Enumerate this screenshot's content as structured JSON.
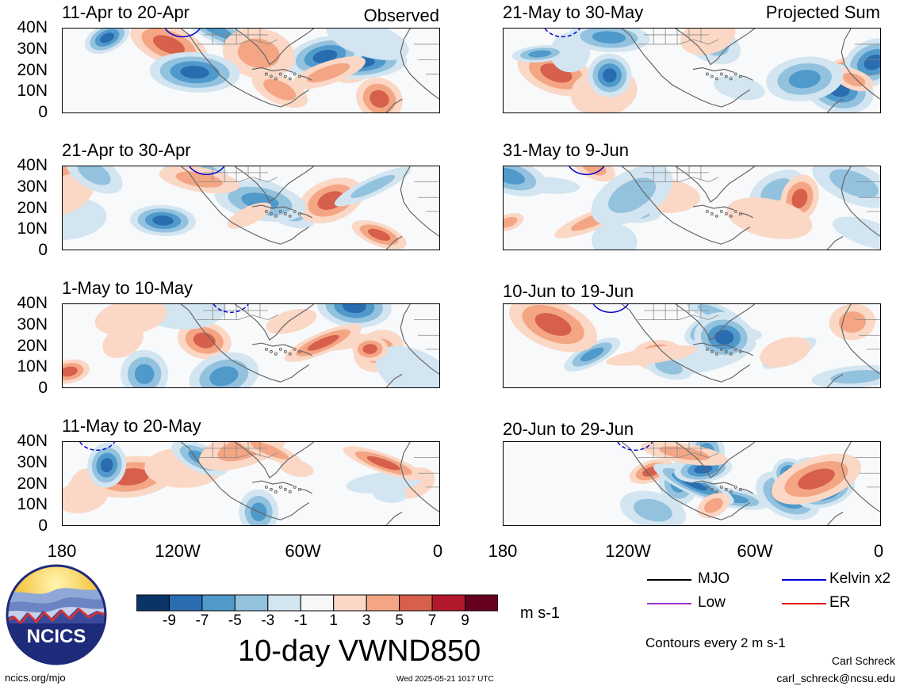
{
  "panels": [
    {
      "title": "11-Apr to 20-Apr",
      "seed": 1
    },
    {
      "title": "21-Apr to 30-Apr",
      "seed": 2
    },
    {
      "title": "1-May to 10-May",
      "seed": 3
    },
    {
      "title": "11-May to 20-May",
      "seed": 4
    },
    {
      "title": "21-May to 30-May",
      "seed": 5
    },
    {
      "title": "31-May to 9-Jun",
      "seed": 6
    },
    {
      "title": "10-Jun to 19-Jun",
      "seed": 7
    },
    {
      "title": "20-Jun to 29-Jun",
      "seed": 8
    }
  ],
  "labels": {
    "observed": "Observed",
    "projected": "Projected Sum"
  },
  "axes": {
    "lat_ticks": [
      "40N",
      "30N",
      "20N",
      "10N",
      "0"
    ],
    "lon_ticks": [
      "180",
      "120W",
      "60W",
      "0"
    ]
  },
  "colorbar": {
    "colors": [
      "#0b3466",
      "#2a6cb0",
      "#4f99cb",
      "#93c2de",
      "#d2e5f1",
      "#f7f7f7",
      "#fbd7c5",
      "#f4a684",
      "#d6604c",
      "#b2182b",
      "#67001f"
    ],
    "labels": [
      "-9",
      "-7",
      "-5",
      "-3",
      "-1",
      "1",
      "3",
      "5",
      "7",
      "9"
    ],
    "units": "m s-1"
  },
  "field_title": "10-day VWND850",
  "legend": {
    "mjo": {
      "label": "MJO",
      "color": "#000000"
    },
    "kelvin": {
      "label": "Kelvin x2",
      "color": "#0000cc"
    },
    "low": {
      "label": "Low",
      "color": "#9932cc"
    },
    "er": {
      "label": "ER",
      "color": "#e00000"
    }
  },
  "contour_note": "Contours every 2 m s-1",
  "credit": {
    "name": "Carl Schreck",
    "email": "carl_schreck@ncsu.edu"
  },
  "url": "ncics.org/mjo",
  "timestamp": "Wed 2025-05-21 1017 UTC",
  "logo_text": "NCICS"
}
